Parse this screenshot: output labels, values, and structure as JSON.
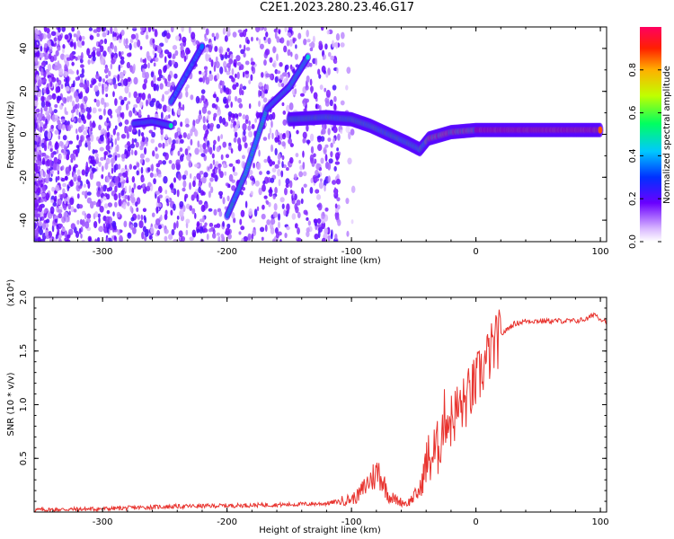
{
  "title": "C2E1.2023.280.23.46.G17",
  "colors": {
    "snr_line": "#e8342f",
    "spectrogram_low": "#6a00ff",
    "spectrogram_mid": "#00e0c0",
    "spectrogram_high": "#ff0040"
  },
  "colorbar": {
    "label": "Normalized spectral amplitude",
    "ticks": [
      "0.0",
      "0.2",
      "0.4",
      "0.6",
      "0.8"
    ],
    "tick_values": [
      0.0,
      0.2,
      0.4,
      0.6,
      0.8
    ],
    "range": [
      0,
      1
    ]
  },
  "chart_data": [
    {
      "type": "heatmap",
      "title": "",
      "xlabel": "Height of straight line (km)",
      "ylabel": "Frequency (Hz)",
      "xlim": [
        -355,
        105
      ],
      "ylim": [
        -50,
        50
      ],
      "x_ticks": [
        -300,
        -200,
        -100,
        0,
        100
      ],
      "x_tick_labels": [
        "-300",
        "-200",
        "-100",
        "0",
        "100"
      ],
      "y_ticks": [
        -40,
        -20,
        0,
        20,
        40
      ],
      "y_tick_labels": [
        "-40",
        "-20",
        "0",
        "20",
        "40"
      ],
      "ridges": [
        {
          "name": "",
          "points": [
            [
              -275,
              5
            ],
            [
              -260,
              6
            ],
            [
              -245,
              4
            ]
          ],
          "amplitude": 0.45
        },
        {
          "name": "",
          "points": [
            [
              -245,
              15
            ],
            [
              -220,
              41
            ]
          ],
          "amplitude": 0.4
        },
        {
          "name": "",
          "points": [
            [
              -200,
              -38
            ],
            [
              -185,
              -18
            ],
            [
              -168,
              12
            ],
            [
              -150,
              22
            ],
            [
              -135,
              36
            ]
          ],
          "amplitude": 0.45
        },
        {
          "name": "",
          "points": [
            [
              -150,
              7
            ],
            [
              -120,
              8
            ],
            [
              -100,
              7
            ],
            [
              -85,
              4
            ],
            [
              -70,
              0
            ],
            [
              -55,
              -4
            ],
            [
              -45,
              -7
            ],
            [
              -38,
              -2
            ],
            [
              -20,
              1
            ],
            [
              0,
              2
            ],
            [
              20,
              2
            ],
            [
              60,
              2
            ],
            [
              100,
              2
            ]
          ],
          "amplitude": 0.9
        }
      ]
    },
    {
      "type": "line",
      "title": "",
      "xlabel": "Height of straight line (km)",
      "ylabel": "SNR (10 * v/v)",
      "y_scale_label": "(x10⁴)",
      "xlim": [
        -355,
        105
      ],
      "ylim": [
        0,
        2.0
      ],
      "x_ticks": [
        -300,
        -200,
        -100,
        0,
        100
      ],
      "x_tick_labels": [
        "-300",
        "-200",
        "-100",
        "0",
        "100"
      ],
      "y_ticks": [
        0.5,
        1.0,
        1.5,
        2.0
      ],
      "y_tick_labels": [
        "0.5",
        "1.0",
        "1.5",
        "2.0"
      ],
      "series": [
        {
          "name": "",
          "x": [
            -355,
            -300,
            -250,
            -200,
            -150,
            -120,
            -100,
            -95,
            -85,
            -78,
            -70,
            -62,
            -55,
            -45,
            -40,
            -30,
            -25,
            -20,
            -15,
            -10,
            -5,
            0,
            10,
            20,
            30,
            40,
            50,
            60,
            70,
            80,
            90,
            95,
            100,
            105
          ],
          "y": [
            0.02,
            0.03,
            0.05,
            0.06,
            0.07,
            0.08,
            0.12,
            0.15,
            0.3,
            0.38,
            0.15,
            0.1,
            0.08,
            0.2,
            0.45,
            0.6,
            0.9,
            0.85,
            0.95,
            1.0,
            1.1,
            1.2,
            1.45,
            1.65,
            1.75,
            1.78,
            1.78,
            1.78,
            1.78,
            1.78,
            1.8,
            1.85,
            1.8,
            1.78
          ]
        }
      ]
    }
  ]
}
